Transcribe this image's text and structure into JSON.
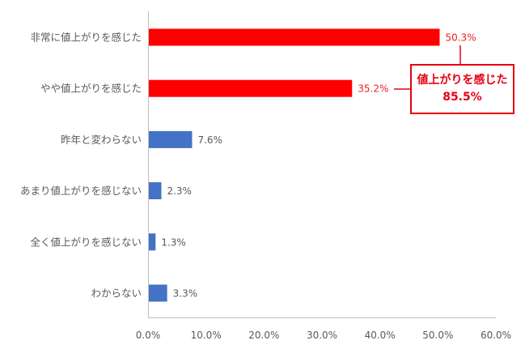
{
  "chart_data": {
    "type": "bar",
    "orientation": "horizontal",
    "categories": [
      "非常に値上がりを感じた",
      "やや値上がりを感じた",
      "昨年と変わらない",
      "あまり値上がりを感じない",
      "全く値上がりを感じない",
      "わからない"
    ],
    "values": [
      50.3,
      35.2,
      7.6,
      2.3,
      1.3,
      3.3
    ],
    "value_labels": [
      "50.3%",
      "35.2%",
      "7.6%",
      "2.3%",
      "1.3%",
      "3.3%"
    ],
    "bar_colors": [
      "#ff0000",
      "#ff0000",
      "#4472c4",
      "#4472c4",
      "#4472c4",
      "#4472c4"
    ],
    "highlight_label_color": "#e8251f",
    "xlim": [
      0,
      60
    ],
    "x_ticks": [
      0,
      10,
      20,
      30,
      40,
      50,
      60
    ],
    "x_tick_labels": [
      "0.0%",
      "10.0%",
      "20.0%",
      "30.0%",
      "40.0%",
      "50.0%",
      "60.0%"
    ],
    "grid": false,
    "annotation": {
      "line1": "値上がりを感じた",
      "line2": "85.5%",
      "color": "#e60012"
    }
  }
}
